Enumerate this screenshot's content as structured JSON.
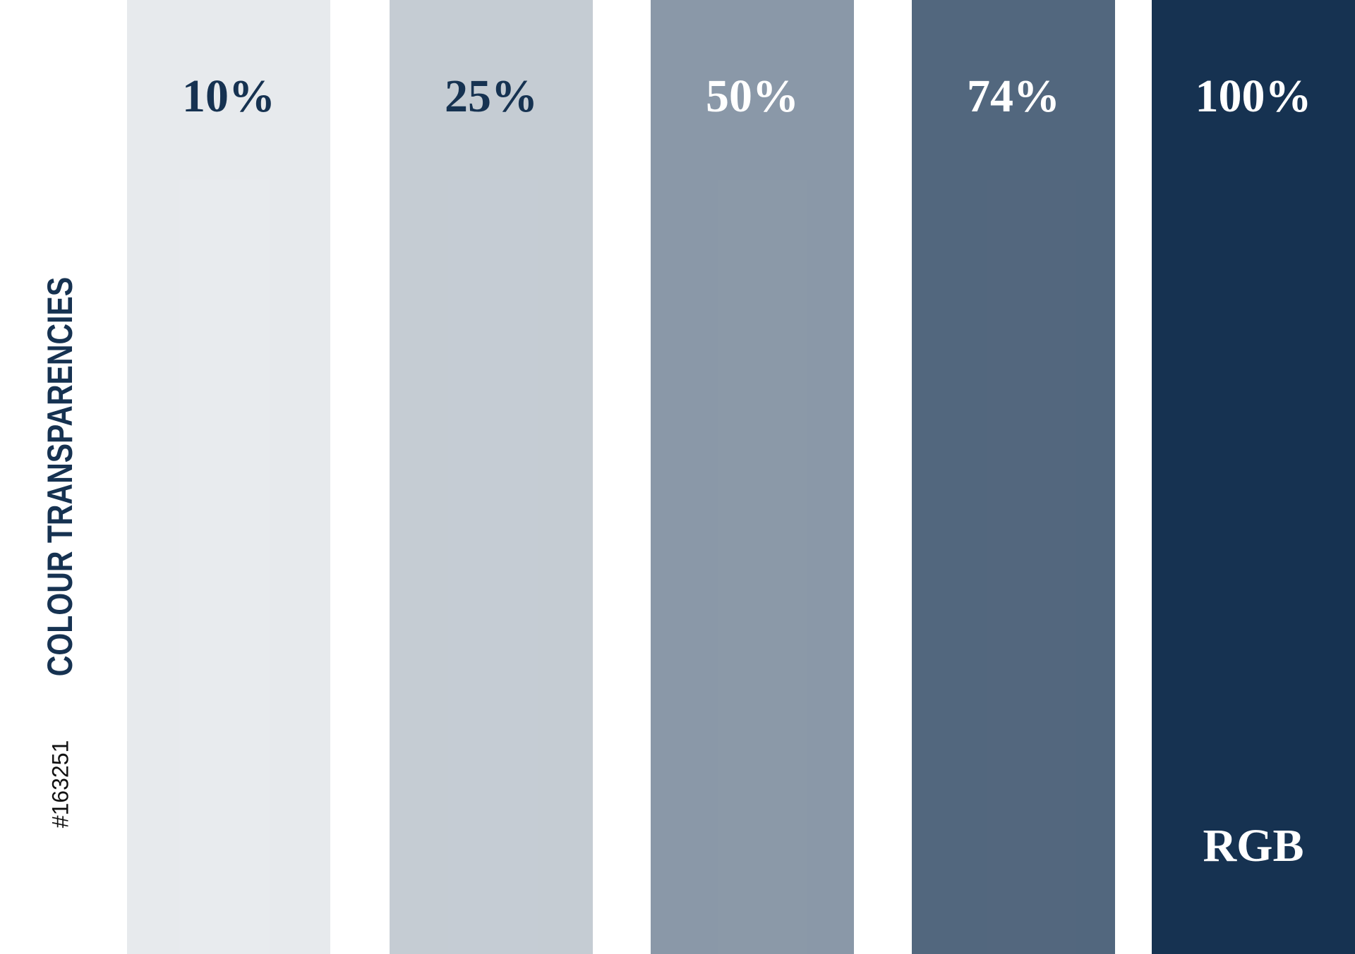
{
  "title": "COLOUR TRANSPARENCIES",
  "hex": "#163251",
  "swatches": {
    "values": [
      10,
      25,
      50,
      74,
      100
    ],
    "value_labels": [
      "10%",
      "25%",
      "50%",
      "74%",
      "100%"
    ]
  },
  "footer_label": "RGB"
}
